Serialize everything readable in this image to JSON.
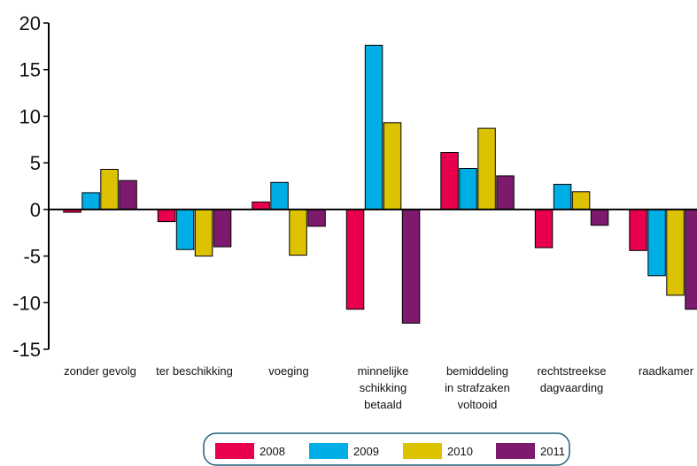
{
  "chart_data": {
    "type": "bar",
    "title": "",
    "xlabel": "",
    "ylabel": "",
    "ylim": [
      -15,
      20
    ],
    "yticks": [
      20,
      15,
      10,
      5,
      0,
      -5,
      -10,
      -15
    ],
    "ytick_labels": [
      "20",
      "15",
      "10",
      "5",
      "0",
      "-5",
      "-10",
      "-15"
    ],
    "categories": [
      [
        "zonder gevolg"
      ],
      [
        "ter beschikking"
      ],
      [
        "voeging"
      ],
      [
        "minnelijke",
        "schikking",
        "betaald"
      ],
      [
        "bemiddeling",
        "in strafzaken",
        "voltooid"
      ],
      [
        "rechtstreekse",
        "dagvaarding"
      ],
      [
        "raadkamer"
      ]
    ],
    "series": [
      {
        "name": "2008",
        "color": "#e8004f",
        "values": [
          -0.3,
          -1.3,
          0.8,
          -10.7,
          6.1,
          -4.1,
          -4.4
        ]
      },
      {
        "name": "2009",
        "color": "#00aee6",
        "values": [
          1.8,
          -4.3,
          2.9,
          17.6,
          4.4,
          2.7,
          -7.1
        ]
      },
      {
        "name": "2010",
        "color": "#dcc200",
        "values": [
          4.3,
          -5.0,
          -4.9,
          9.3,
          8.7,
          1.9,
          -9.2
        ]
      },
      {
        "name": "2011",
        "color": "#7d1a6e",
        "values": [
          3.1,
          -4.0,
          -1.8,
          -12.2,
          3.6,
          -1.7,
          -10.7
        ]
      }
    ],
    "grid": false,
    "legend_position": "bottom"
  }
}
